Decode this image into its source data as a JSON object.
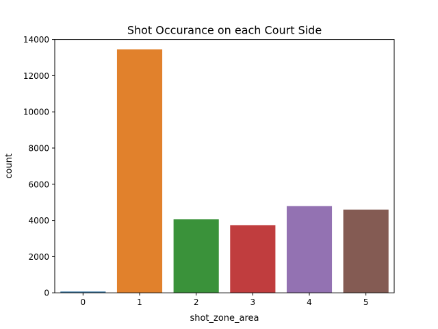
{
  "chart_data": {
    "type": "bar",
    "title": "Shot Occurance on each Court Side",
    "xlabel": "shot_zone_area",
    "ylabel": "count",
    "categories": [
      "0",
      "1",
      "2",
      "3",
      "4",
      "5"
    ],
    "values": [
      70,
      13450,
      4060,
      3740,
      4790,
      4600
    ],
    "colors": [
      "#3274a1",
      "#e1812c",
      "#3a923a",
      "#c03d3e",
      "#9372b2",
      "#845b53"
    ],
    "ylim": [
      0,
      14000
    ],
    "yticks": [
      0,
      2000,
      4000,
      6000,
      8000,
      10000,
      12000,
      14000
    ],
    "grid": false,
    "legend": "none"
  }
}
